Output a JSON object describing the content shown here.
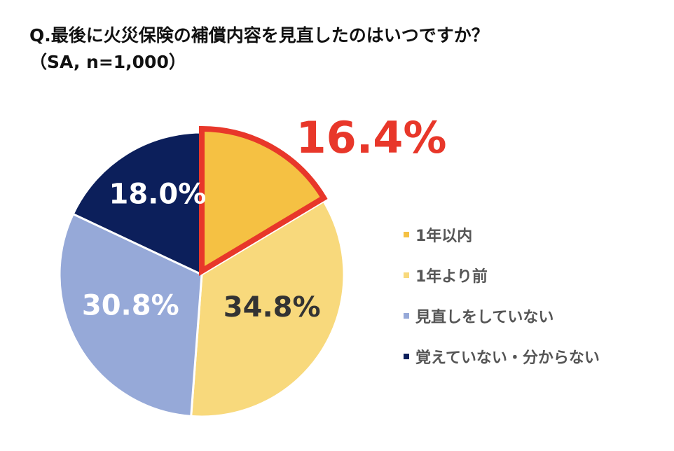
{
  "title_line1": "Q.最後に火災保険の補償内容を見直したのはいつですか？",
  "title_line2": "（SA, n=1,000）",
  "chart_data": {
    "type": "pie",
    "title": "Q.最後に火災保険の補償内容を見直したのはいつですか？（SA, n=1,000）",
    "legend_position": "right",
    "slices": [
      {
        "label": "1年以内",
        "value": 16.4,
        "display": "16.4%",
        "color": "#F5C143",
        "highlighted": true
      },
      {
        "label": "1年より前",
        "value": 34.8,
        "display": "34.8%",
        "color": "#F8D97C",
        "highlighted": false
      },
      {
        "label": "見直しをしていない",
        "value": 30.8,
        "display": "30.8%",
        "color": "#96A9D8",
        "highlighted": false
      },
      {
        "label": "覚えていない・分からない",
        "value": 18.0,
        "display": "18.0%",
        "color": "#0C1F5B",
        "highlighted": false
      }
    ],
    "highlight_color": "#E8372A"
  }
}
